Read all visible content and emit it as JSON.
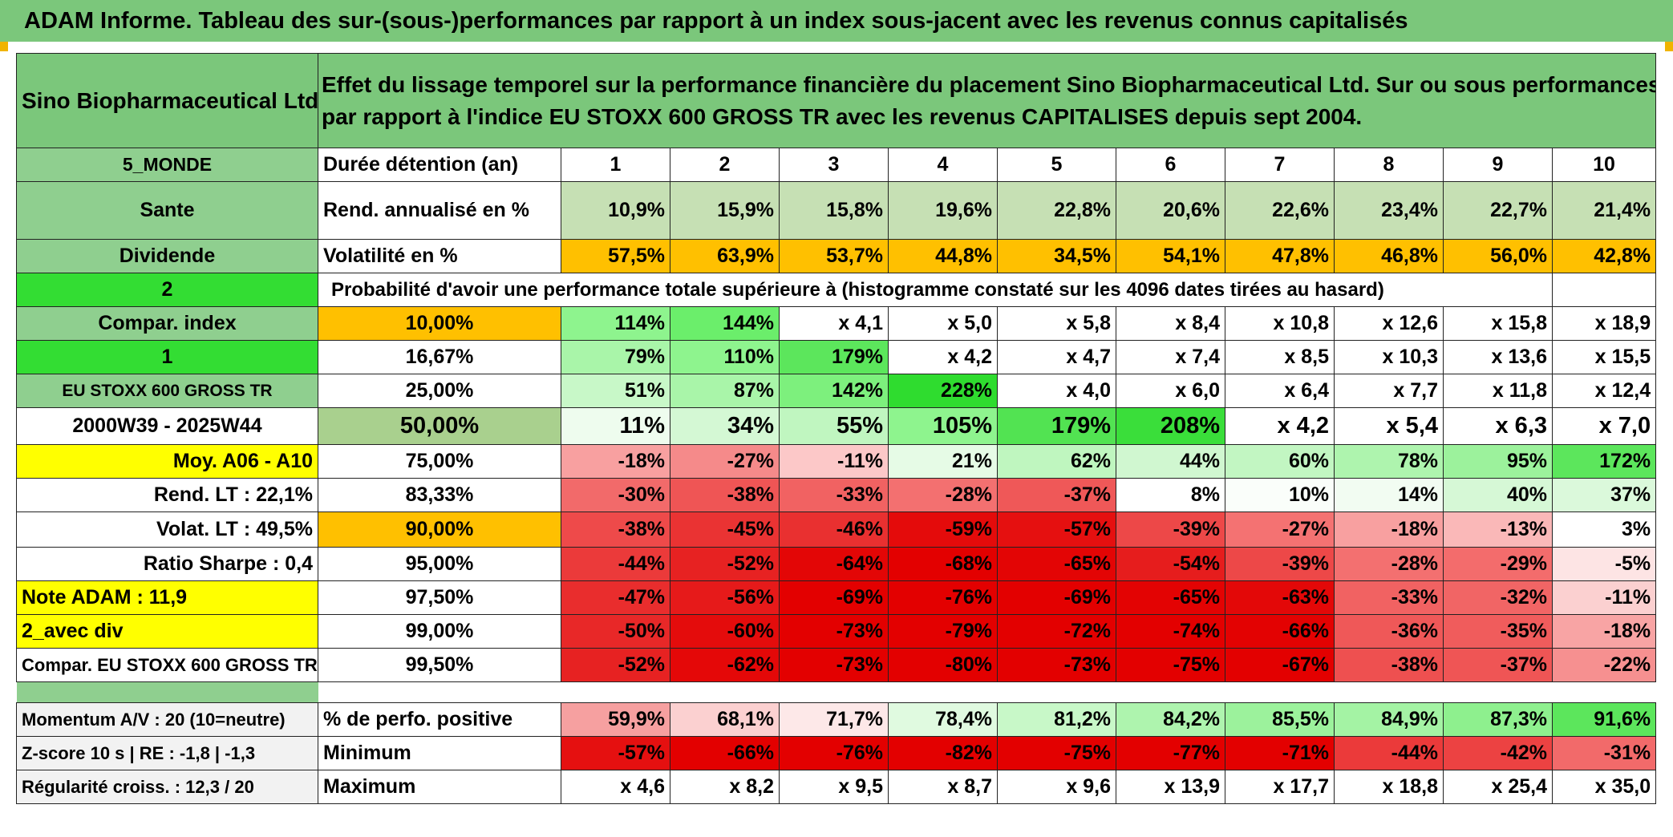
{
  "title": "ADAM Informe. Tableau des sur-(sous-)performances par rapport à un index sous-jacent avec les revenus connus capitalisés",
  "header": {
    "left": "Sino Biopharmaceutical Ltd",
    "right_line1": "Effet du lissage temporel sur la performance financière du placement Sino Biopharmaceutical Ltd. Sur ou sous performances",
    "right_line2": "par rapport à l'indice EU STOXX 600 GROSS TR avec les revenus CAPITALISES depuis sept 2004."
  },
  "durations_label": "Durée détention (an)",
  "durations": [
    "1",
    "2",
    "3",
    "4",
    "5",
    "6",
    "7",
    "8",
    "9",
    "10"
  ],
  "left_labels": {
    "region": "5_MONDE",
    "sector": "Sante",
    "dividend": "Dividende",
    "flag2": "2",
    "compar_index": "Compar. index",
    "flag1": "1",
    "index_name": "EU STOXX 600 GROSS TR",
    "period": "2000W39 - 2025W44",
    "moy": "Moy. A06 - A10",
    "rend_lt": "Rend. LT :   22,1%",
    "volat_lt": "Volat. LT :   49,5%",
    "sharpe": "Ratio Sharpe :    0,4",
    "note": "Note ADAM : 11,9",
    "avec_div": "2_avec div",
    "compar_full": "Compar. EU STOXX 600 GROSS TR",
    "momentum": "Momentum A/V : 20 (10=neutre)",
    "zscore": "Z-score 10 s | RE : -1,8 | -1,3",
    "regularite": "Régularité croiss. : 12,3 / 20"
  },
  "rend": {
    "label": "Rend. annualisé en %",
    "values": [
      "10,9%",
      "15,9%",
      "15,8%",
      "19,6%",
      "22,8%",
      "20,6%",
      "22,6%",
      "23,4%",
      "22,7%",
      "21,4%"
    ],
    "colors": [
      "#c6e0b4",
      "#c6e0b4",
      "#c6e0b4",
      "#c6e0b4",
      "#c6e0b4",
      "#c6e0b4",
      "#c6e0b4",
      "#c6e0b4",
      "#c6e0b4",
      "#c6e0b4"
    ]
  },
  "vol": {
    "label": "Volatilité en %",
    "values": [
      "57,5%",
      "63,9%",
      "53,7%",
      "44,8%",
      "34,5%",
      "54,1%",
      "47,8%",
      "46,8%",
      "56,0%",
      "42,8%"
    ],
    "colors": [
      "#ffc000",
      "#ffc000",
      "#ffc000",
      "#ffc000",
      "#ffc000",
      "#ffc000",
      "#ffc000",
      "#ffc000",
      "#ffc000",
      "#ffc000"
    ]
  },
  "probability_label": "Probabilité d'avoir une performance totale supérieure à (histogramme constaté sur les 4096 dates tirées au hasard)",
  "prob_rows": [
    {
      "pct": "10,00%",
      "pct_color": "#ffc000",
      "bold": true,
      "values": [
        "114%",
        "144%",
        "x 4,1",
        "x 5,0",
        "x 5,8",
        "x 8,4",
        "x 10,8",
        "x 12,6",
        "x 15,8",
        "x 18,9"
      ],
      "colors": [
        "#8ef48e",
        "#6bee6b",
        "#ffffff",
        "#ffffff",
        "#ffffff",
        "#ffffff",
        "#ffffff",
        "#ffffff",
        "#ffffff",
        "#ffffff"
      ]
    },
    {
      "pct": "16,67%",
      "pct_color": "#ffffff",
      "bold": false,
      "values": [
        "79%",
        "110%",
        "179%",
        "x 4,2",
        "x 4,7",
        "x 7,4",
        "x 8,5",
        "x 10,3",
        "x 13,6",
        "x 15,5"
      ],
      "colors": [
        "#a9f5a9",
        "#8ef48e",
        "#5ce65c",
        "#ffffff",
        "#ffffff",
        "#ffffff",
        "#ffffff",
        "#ffffff",
        "#ffffff",
        "#ffffff"
      ]
    },
    {
      "pct": "25,00%",
      "pct_color": "#ffffff",
      "bold": false,
      "values": [
        "51%",
        "87%",
        "142%",
        "228%",
        "x 4,0",
        "x 6,0",
        "x 6,4",
        "x 7,7",
        "x 11,8",
        "x 12,4"
      ],
      "colors": [
        "#c8f8c8",
        "#a9f5a9",
        "#7df07d",
        "#2fdc2f",
        "#ffffff",
        "#ffffff",
        "#ffffff",
        "#ffffff",
        "#ffffff",
        "#ffffff"
      ]
    },
    {
      "pct": "50,00%",
      "pct_color": "#a9d08e",
      "bold": true,
      "big": true,
      "values": [
        "11%",
        "34%",
        "55%",
        "105%",
        "179%",
        "208%",
        "x 4,2",
        "x 5,4",
        "x 6,3",
        "x 7,0"
      ],
      "colors": [
        "#eefcee",
        "#d4f8d4",
        "#c0f6c0",
        "#8ef48e",
        "#52e352",
        "#3ade3a",
        "#ffffff",
        "#ffffff",
        "#ffffff",
        "#ffffff"
      ]
    },
    {
      "pct": "75,00%",
      "pct_color": "#ffffff",
      "bold": false,
      "values": [
        "-18%",
        "-27%",
        "-11%",
        "21%",
        "62%",
        "44%",
        "60%",
        "78%",
        "95%",
        "172%"
      ],
      "colors": [
        "#f8a0a0",
        "#f58a8a",
        "#fcc8c8",
        "#e6fbe6",
        "#bff6bf",
        "#d0f7d0",
        "#c2f6c2",
        "#aef4ae",
        "#9cf29c",
        "#5ce65c"
      ]
    },
    {
      "pct": "83,33%",
      "pct_color": "#ffffff",
      "bold": false,
      "values": [
        "-30%",
        "-38%",
        "-33%",
        "-28%",
        "-37%",
        "8%",
        "10%",
        "14%",
        "40%",
        "37%"
      ],
      "colors": [
        "#f26a6a",
        "#ef5555",
        "#f16262",
        "#f37070",
        "#ef5858",
        "#ffffff",
        "#fafefa",
        "#f2fcf2",
        "#d6f8d6",
        "#dbf9db"
      ]
    },
    {
      "pct": "90,00%",
      "pct_color": "#ffc000",
      "bold": true,
      "values": [
        "-38%",
        "-45%",
        "-46%",
        "-59%",
        "-57%",
        "-39%",
        "-27%",
        "-18%",
        "-13%",
        "3%"
      ],
      "colors": [
        "#ee4a4a",
        "#ea3333",
        "#e93030",
        "#e40b0b",
        "#e51010",
        "#ed4848",
        "#f47272",
        "#f8a0a0",
        "#fab8b8",
        "#ffffff"
      ]
    },
    {
      "pct": "95,00%",
      "pct_color": "#ffffff",
      "bold": false,
      "values": [
        "-44%",
        "-52%",
        "-64%",
        "-68%",
        "-65%",
        "-54%",
        "-39%",
        "-28%",
        "-29%",
        "-5%"
      ],
      "colors": [
        "#eb3a3a",
        "#e72222",
        "#e30606",
        "#e30000",
        "#e30505",
        "#e61d1d",
        "#ed4848",
        "#f37070",
        "#f36c6c",
        "#fde4e4"
      ]
    },
    {
      "pct": "97,50%",
      "pct_color": "#ffffff",
      "bold": false,
      "values": [
        "-47%",
        "-56%",
        "-69%",
        "-76%",
        "-69%",
        "-65%",
        "-63%",
        "-33%",
        "-32%",
        "-11%"
      ],
      "colors": [
        "#e92d2d",
        "#e61a1a",
        "#e30000",
        "#e30000",
        "#e30000",
        "#e30303",
        "#e30808",
        "#f16262",
        "#f16565",
        "#fbd0d0"
      ]
    },
    {
      "pct": "99,00%",
      "pct_color": "#ffffff",
      "bold": false,
      "values": [
        "-50%",
        "-60%",
        "-73%",
        "-79%",
        "-72%",
        "-74%",
        "-66%",
        "-36%",
        "-35%",
        "-18%"
      ],
      "colors": [
        "#e82828",
        "#e40c0c",
        "#e30000",
        "#e30000",
        "#e30000",
        "#e30000",
        "#e30202",
        "#ef5858",
        "#f05c5c",
        "#f8a4a4"
      ]
    },
    {
      "pct": "99,50%",
      "pct_color": "#ffffff",
      "bold": false,
      "values": [
        "-52%",
        "-62%",
        "-73%",
        "-80%",
        "-73%",
        "-75%",
        "-67%",
        "-38%",
        "-37%",
        "-22%"
      ],
      "colors": [
        "#e72222",
        "#e40808",
        "#e30000",
        "#e30000",
        "#e30000",
        "#e30000",
        "#e30000",
        "#ee5050",
        "#ef5555",
        "#f69090"
      ]
    }
  ],
  "stats": {
    "positive": {
      "label": "% de perfo. positive",
      "values": [
        "59,9%",
        "68,1%",
        "71,7%",
        "78,4%",
        "81,2%",
        "84,2%",
        "85,5%",
        "84,9%",
        "87,3%",
        "91,6%"
      ],
      "colors": [
        "#f6a0a0",
        "#fbd0d0",
        "#fde8e8",
        "#e0fae0",
        "#c8f8c8",
        "#aef4ae",
        "#9cf29c",
        "#a4f3a4",
        "#8ef08e",
        "#5ce65c"
      ]
    },
    "minimum": {
      "label": "Minimum",
      "values": [
        "-57%",
        "-66%",
        "-76%",
        "-82%",
        "-75%",
        "-77%",
        "-71%",
        "-44%",
        "-42%",
        "-31%"
      ],
      "colors": [
        "#e51010",
        "#e30000",
        "#e30000",
        "#e30000",
        "#e30000",
        "#e30000",
        "#e30000",
        "#eb3a3a",
        "#ec4242",
        "#f26a6a"
      ]
    },
    "maximum": {
      "label": "Maximum",
      "values": [
        "x 4,6",
        "x 8,2",
        "x 9,5",
        "x 8,7",
        "x 9,6",
        "x 13,9",
        "x 17,7",
        "x 18,8",
        "x 25,4",
        "x 35,0"
      ]
    }
  },
  "colors": {
    "header_green": "#7bc77b",
    "label_green": "#8fcf8f",
    "flag_green": "#33dd33",
    "yellow": "#ffff00",
    "orange": "#ffc000",
    "red_text": "#d40000"
  }
}
